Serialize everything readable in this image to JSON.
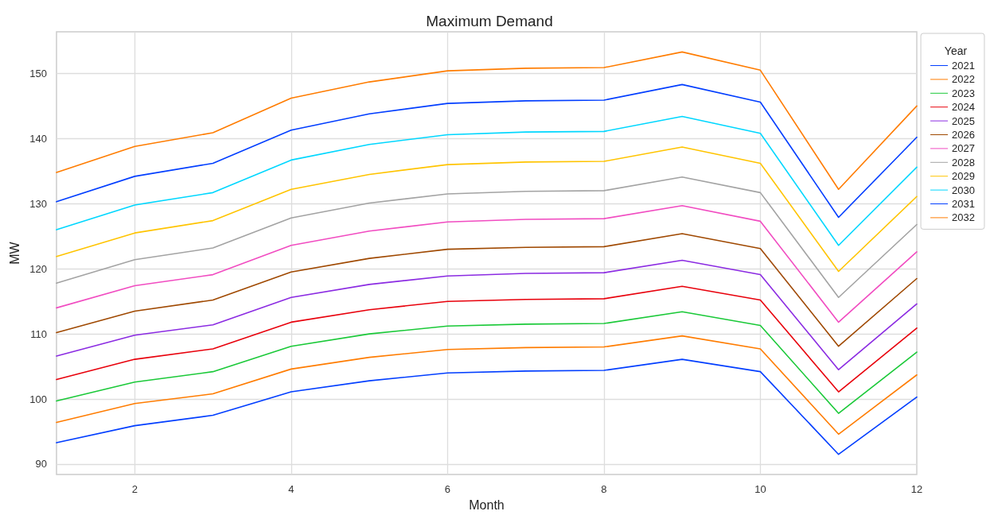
{
  "chart_data": {
    "type": "line",
    "title": "Maximum Demand",
    "xlabel": "Month",
    "ylabel": "MW",
    "legend_title": "Year",
    "legend": "top right",
    "grid": true,
    "marker": "none",
    "line_style": "solid",
    "x": [
      1,
      2,
      3,
      4,
      5,
      6,
      7,
      8,
      9,
      10,
      11,
      12
    ],
    "xlim": [
      1,
      12
    ],
    "xticks": [
      2,
      4,
      6,
      8,
      10,
      12
    ],
    "ylim": [
      88.4,
      156.4
    ],
    "yticks": [
      90,
      100,
      110,
      120,
      130,
      140,
      150
    ],
    "series": [
      {
        "name": "2021",
        "color": "#023eff",
        "values": [
          93.3,
          95.9,
          97.5,
          101.1,
          102.8,
          104.0,
          104.3,
          104.4,
          106.1,
          104.2,
          91.5,
          100.3
        ]
      },
      {
        "name": "2022",
        "color": "#ff7c00",
        "values": [
          96.4,
          99.3,
          100.8,
          104.6,
          106.4,
          107.6,
          107.9,
          108.0,
          109.7,
          107.7,
          94.6,
          103.7
        ]
      },
      {
        "name": "2023",
        "color": "#1ac938",
        "values": [
          99.7,
          102.6,
          104.2,
          108.1,
          110.0,
          111.2,
          111.5,
          111.6,
          113.4,
          111.3,
          97.8,
          107.2
        ]
      },
      {
        "name": "2024",
        "color": "#e8000b",
        "values": [
          103.0,
          106.1,
          107.7,
          111.8,
          113.7,
          115.0,
          115.3,
          115.4,
          117.3,
          115.2,
          101.1,
          110.9
        ]
      },
      {
        "name": "2025",
        "color": "#8b2be2",
        "values": [
          106.6,
          109.8,
          111.4,
          115.6,
          117.6,
          118.9,
          119.3,
          119.4,
          121.3,
          119.1,
          104.5,
          114.6
        ]
      },
      {
        "name": "2026",
        "color": "#9f4800",
        "values": [
          110.2,
          113.5,
          115.2,
          119.5,
          121.6,
          123.0,
          123.3,
          123.4,
          125.4,
          123.1,
          108.1,
          118.5
        ]
      },
      {
        "name": "2027",
        "color": "#f14cc1",
        "values": [
          114.0,
          117.4,
          119.1,
          123.6,
          125.8,
          127.2,
          127.6,
          127.7,
          129.7,
          127.3,
          111.8,
          122.6
        ]
      },
      {
        "name": "2028",
        "color": "#a3a3a3",
        "values": [
          117.8,
          121.4,
          123.2,
          127.8,
          130.1,
          131.5,
          131.9,
          132.0,
          134.1,
          131.7,
          115.6,
          126.8
        ]
      },
      {
        "name": "2029",
        "color": "#ffc400",
        "values": [
          121.9,
          125.5,
          127.4,
          132.2,
          134.5,
          136.0,
          136.4,
          136.5,
          138.7,
          136.2,
          119.6,
          131.1
        ]
      },
      {
        "name": "2030",
        "color": "#00d7ff",
        "values": [
          126.0,
          129.8,
          131.7,
          136.7,
          139.1,
          140.6,
          141.0,
          141.1,
          143.4,
          140.8,
          123.6,
          135.6
        ]
      },
      {
        "name": "2031",
        "color": "#023eff",
        "values": [
          130.3,
          134.2,
          136.2,
          141.3,
          143.8,
          145.4,
          145.8,
          145.9,
          148.3,
          145.6,
          127.9,
          140.2
        ]
      },
      {
        "name": "2032",
        "color": "#ff7c00",
        "values": [
          134.8,
          138.8,
          140.9,
          146.2,
          148.7,
          150.4,
          150.8,
          150.9,
          153.3,
          150.5,
          132.2,
          145.0
        ]
      }
    ]
  }
}
